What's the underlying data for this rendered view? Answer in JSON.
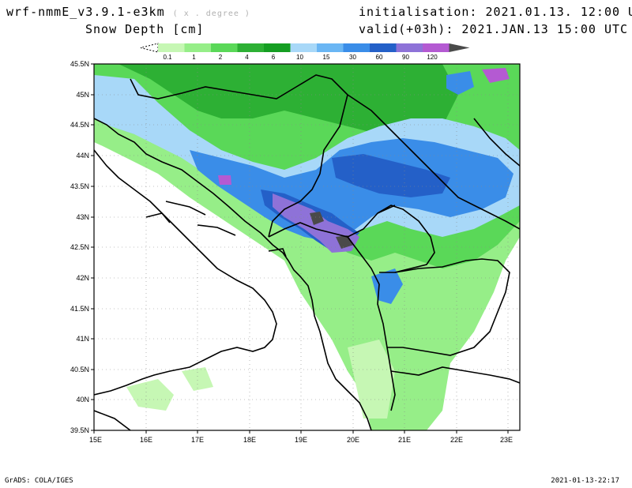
{
  "header": {
    "model": "wrf-nmmE_v3.9.1-e3km",
    "units_note": "( x . degree )",
    "field": "Snow Depth [cm]",
    "init": "initialisation: 2021.01.13.  12:00 UTC",
    "valid": "valid(+03h): 2021.JAN.13  15:00 UTC"
  },
  "legend": {
    "levels": [
      "0.1",
      "1",
      "2",
      "4",
      "6",
      "10",
      "15",
      "30",
      "60",
      "90",
      "120"
    ],
    "colors": [
      "#c6f7b4",
      "#96ee88",
      "#5ad858",
      "#2db034",
      "#159e22",
      "#a8d8f8",
      "#6ab6f4",
      "#3a8de8",
      "#2460c8",
      "#8e72d8",
      "#b45ad2",
      "#4a4a4a"
    ]
  },
  "axes": {
    "lat_labels": [
      "45.5N",
      "45N",
      "44.5N",
      "44N",
      "43.5N",
      "43N",
      "42.5N",
      "42N",
      "41.5N",
      "41N",
      "40.5N",
      "40N",
      "39.5N"
    ],
    "lon_labels": [
      "15E",
      "16E",
      "17E",
      "18E",
      "19E",
      "20E",
      "21E",
      "22E",
      "23E"
    ]
  },
  "footer": {
    "left": "GrADS: COLA/IGES",
    "right": "2021-01-13-22:17"
  }
}
